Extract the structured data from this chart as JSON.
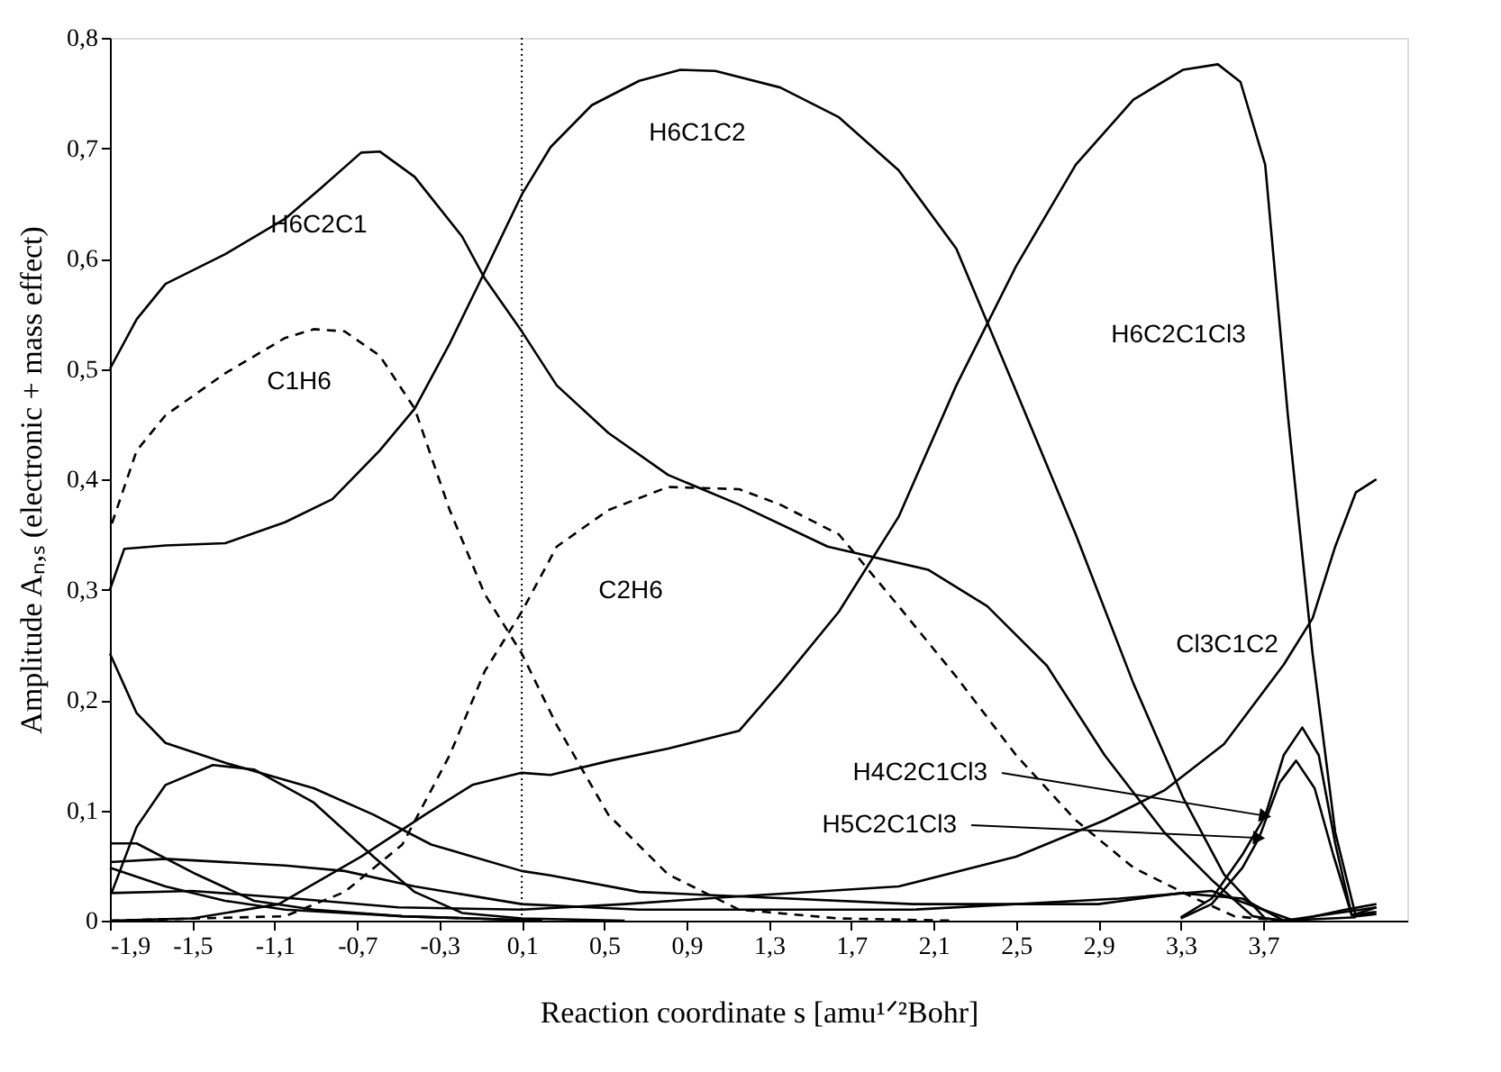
{
  "chart_data": {
    "type": "line",
    "xlabel": "Reaction coordinate s [amu¹ᐟ²Bohr]",
    "ylabel": "Amplitude Aₙ,ₛ (electronic + mass effect)",
    "xlim": [
      -1.9,
      4.4
    ],
    "xticks": [
      {
        "value": -1.9,
        "label": "-1,9"
      },
      {
        "value": -1.5,
        "label": "-1,5"
      },
      {
        "value": -1.1,
        "label": "-1,1"
      },
      {
        "value": -0.7,
        "label": "-0,7"
      },
      {
        "value": -0.3,
        "label": "-0,3"
      },
      {
        "value": 0.1,
        "label": "0,1"
      },
      {
        "value": 0.5,
        "label": "0,5"
      },
      {
        "value": 0.9,
        "label": "0,9"
      },
      {
        "value": 1.3,
        "label": "1,3"
      },
      {
        "value": 1.7,
        "label": "1,7"
      },
      {
        "value": 2.1,
        "label": "2,1"
      },
      {
        "value": 2.5,
        "label": "2,5"
      },
      {
        "value": 2.9,
        "label": "2,9"
      },
      {
        "value": 3.3,
        "label": "3,3"
      },
      {
        "value": 3.7,
        "label": "3,7"
      }
    ],
    "ylim": [
      0,
      0.8
    ],
    "yticks": [
      0,
      {
        "value": 0.1,
        "label": "0,1"
      },
      {
        "value": 0.2,
        "label": "0,2"
      },
      {
        "value": 0.3,
        "label": "0,3"
      },
      {
        "value": 0.4,
        "label": "0,4"
      },
      {
        "value": 0.5,
        "label": "0,5"
      },
      {
        "value": 0.6,
        "label": "0,6"
      },
      {
        "value": 0.7,
        "label": "0,7"
      },
      {
        "value": 0.8,
        "label": "0,8"
      }
    ],
    "grid": false,
    "marker": "none",
    "series": [
      {
        "name": "H6C2C1",
        "color": "#000000",
        "line_style": "solid",
        "x": [
          -1.9,
          -1.77,
          -1.63,
          -1.34,
          -1.05,
          -0.88,
          -0.68,
          -0.59,
          -0.42,
          -0.19,
          -0.08,
          0.1,
          0.27,
          0.52,
          0.81,
          1.155,
          1.585,
          2.073,
          2.36,
          2.65,
          2.93,
          3.22,
          3.45,
          3.65,
          3.79,
          4.15
        ],
        "values": [
          0.5,
          0.545,
          0.577,
          0.604,
          0.636,
          0.663,
          0.696,
          0.697,
          0.674,
          0.62,
          0.582,
          0.534,
          0.485,
          0.442,
          0.404,
          0.377,
          0.339,
          0.318,
          0.285,
          0.231,
          0.15,
          0.08,
          0.037,
          0.004,
          0,
          0.003
        ]
      },
      {
        "name": "H6C1C2",
        "color": "#000000",
        "line_style": "solid",
        "x": [
          -1.9,
          -1.83,
          -1.63,
          -1.34,
          -1.05,
          -0.82,
          -0.59,
          -0.42,
          -0.25,
          -0.08,
          0.1,
          0.24,
          0.44,
          0.67,
          0.87,
          1.04,
          1.355,
          1.64,
          1.93,
          2.21,
          2.5,
          2.79,
          3.07,
          3.31,
          3.51,
          3.71,
          3.82
        ],
        "values": [
          0.3,
          0.337,
          0.34,
          0.342,
          0.361,
          0.382,
          0.426,
          0.464,
          0.523,
          0.588,
          0.658,
          0.701,
          0.739,
          0.761,
          0.771,
          0.77,
          0.755,
          0.728,
          0.68,
          0.609,
          0.48,
          0.35,
          0.215,
          0.112,
          0.042,
          0.002,
          0
        ]
      },
      {
        "name": "C1H6",
        "color": "#000000",
        "line_style": "dashed",
        "x": [
          -1.89,
          -1.77,
          -1.63,
          -1.34,
          -1.05,
          -0.91,
          -0.76,
          -0.59,
          -0.42,
          -0.25,
          -0.08,
          0.1,
          0.27,
          0.52,
          0.81,
          1.155,
          1.64,
          2.2
        ],
        "values": [
          0.36,
          0.426,
          0.458,
          0.496,
          0.528,
          0.536,
          0.534,
          0.512,
          0.464,
          0.372,
          0.296,
          0.242,
          0.177,
          0.096,
          0.042,
          0.01,
          0.002,
          0
        ]
      },
      {
        "name": "C2H6",
        "color": "#000000",
        "line_style": "dashed",
        "x": [
          -1.9,
          -1.05,
          -0.76,
          -0.48,
          -0.25,
          -0.08,
          0.1,
          0.27,
          0.52,
          0.81,
          1.155,
          1.355,
          1.64,
          1.93,
          2.21,
          2.5,
          2.79,
          3.07,
          3.36,
          3.56,
          3.79
        ],
        "values": [
          0,
          0.004,
          0.026,
          0.069,
          0.15,
          0.226,
          0.28,
          0.339,
          0.372,
          0.393,
          0.391,
          0.377,
          0.35,
          0.285,
          0.221,
          0.15,
          0.091,
          0.048,
          0.021,
          0.004,
          0
        ]
      },
      {
        "name": "H6C2C1Cl3",
        "color": "#000000",
        "line_style": "solid",
        "x": [
          -1.9,
          -1.5,
          -1.08,
          -0.68,
          -0.37,
          -0.14,
          0.1,
          0.24,
          0.53,
          0.81,
          1.155,
          1.355,
          1.64,
          1.93,
          2.21,
          2.5,
          2.79,
          3.07,
          3.31,
          3.48,
          3.59,
          3.71,
          3.82,
          3.94,
          4.05,
          4.15,
          4.25
        ],
        "values": [
          0,
          0.002,
          0.015,
          0.058,
          0.096,
          0.123,
          0.134,
          0.132,
          0.145,
          0.156,
          0.172,
          0.215,
          0.28,
          0.366,
          0.485,
          0.593,
          0.685,
          0.744,
          0.771,
          0.776,
          0.76,
          0.685,
          0.458,
          0.242,
          0.08,
          0.004,
          0.006
        ]
      },
      {
        "name": "Cl3C1C2",
        "color": "#000000",
        "line_style": "solid",
        "x": [
          -1.9,
          -1.5,
          -1.0,
          -0.5,
          0.1,
          0.6,
          1.07,
          1.93,
          2.5,
          2.93,
          3.22,
          3.51,
          3.8,
          3.94,
          4.05,
          4.15,
          4.25
        ],
        "values": [
          0.025,
          0.027,
          0.02,
          0.012,
          0.01,
          0.015,
          0.021,
          0.031,
          0.058,
          0.091,
          0.118,
          0.16,
          0.232,
          0.274,
          0.339,
          0.388,
          0.4
        ]
      },
      {
        "name": "H4C2C1Cl3",
        "color": "#000000",
        "line_style": "solid",
        "x": [
          3.3,
          3.45,
          3.6,
          3.71,
          3.8,
          3.89,
          3.97,
          4.05,
          4.13,
          4.25
        ],
        "values": [
          0.003,
          0.02,
          0.06,
          0.095,
          0.15,
          0.175,
          0.15,
          0.07,
          0.005,
          0.012
        ]
      },
      {
        "name": "H5C2C1Cl3",
        "color": "#000000",
        "line_style": "solid",
        "x": [
          3.3,
          3.45,
          3.6,
          3.68,
          3.78,
          3.86,
          3.95,
          4.04,
          4.13,
          4.25
        ],
        "values": [
          0.002,
          0.015,
          0.048,
          0.075,
          0.125,
          0.145,
          0.12,
          0.06,
          0.005,
          0.008
        ]
      },
      {
        "color": "#000000",
        "line_style": "solid",
        "x": [
          -1.9,
          -1.77,
          -1.63,
          -1.34,
          -0.91,
          -0.62,
          -0.34,
          0.1,
          0.24,
          0.67,
          1.155,
          2.0,
          2.9,
          3.3,
          3.6,
          3.8,
          4.1,
          4.25
        ],
        "values": [
          0.242,
          0.188,
          0.161,
          0.143,
          0.12,
          0.096,
          0.069,
          0.045,
          0.041,
          0.026,
          0.022,
          0.015,
          0.015,
          0.025,
          0.02,
          0,
          0.008,
          0.012
        ]
      },
      {
        "color": "#000000",
        "line_style": "solid",
        "x": [
          -1.89,
          -1.77,
          -1.63,
          -1.4,
          -1.2,
          -0.91,
          -0.62,
          -0.42,
          -0.19,
          0.1,
          0.6
        ],
        "values": [
          0.026,
          0.085,
          0.123,
          0.141,
          0.137,
          0.107,
          0.058,
          0.026,
          0.007,
          0.002,
          0
        ]
      },
      {
        "color": "#000000",
        "line_style": "solid",
        "x": [
          -1.9,
          -1.77,
          -1.48,
          -1.2,
          -0.91,
          -0.48,
          0.2
        ],
        "values": [
          0.07,
          0.07,
          0.042,
          0.018,
          0.01,
          0.004,
          0
        ]
      },
      {
        "color": "#000000",
        "line_style": "solid",
        "x": [
          -1.9,
          -1.63,
          -1.05,
          -0.76,
          -0.42,
          0.1,
          0.67,
          1.155,
          2.0,
          3.0,
          3.45,
          3.7,
          3.85,
          4.1,
          4.25
        ],
        "values": [
          0.053,
          0.056,
          0.05,
          0.045,
          0.031,
          0.015,
          0.01,
          0.01,
          0.01,
          0.02,
          0.027,
          0.01,
          0,
          0.01,
          0.015
        ]
      },
      {
        "color": "#000000",
        "line_style": "solid",
        "x": [
          -1.9,
          -1.63,
          -1.34,
          -1.05,
          -0.48,
          0.2
        ],
        "values": [
          0.048,
          0.031,
          0.018,
          0.01,
          0.004,
          0
        ]
      }
    ],
    "ref_lines": [
      {
        "axis": "x",
        "value": 0.1,
        "color": "#000000",
        "line_style": "dotted"
      }
    ]
  }
}
